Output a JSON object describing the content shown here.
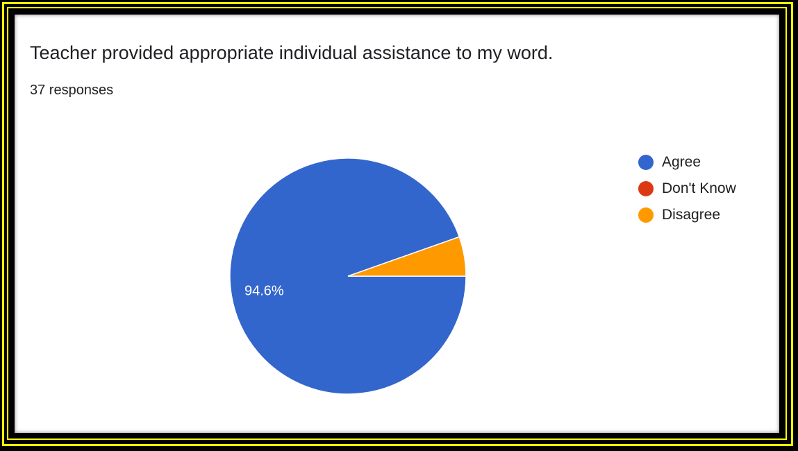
{
  "card": {
    "title": "Teacher provided appropriate individual assistance to my word.",
    "responses": "37 responses"
  },
  "colors": {
    "frame": "#ffff00",
    "agree": "#3366cc",
    "dont_know": "#dc3912",
    "disagree": "#ff9900"
  },
  "chart_data": {
    "type": "pie",
    "title": "Teacher provided appropriate individual assistance to my word.",
    "categories": [
      "Agree",
      "Don't Know",
      "Disagree"
    ],
    "values": [
      35,
      0,
      2
    ],
    "colors": [
      "#3366cc",
      "#dc3912",
      "#ff9900"
    ],
    "data_labels": [
      "94.6%",
      "",
      ""
    ],
    "legend_position": "right"
  },
  "legend": [
    {
      "label": "Agree",
      "color": "#3366cc"
    },
    {
      "label": "Don't Know",
      "color": "#dc3912"
    },
    {
      "label": "Disagree",
      "color": "#ff9900"
    }
  ]
}
